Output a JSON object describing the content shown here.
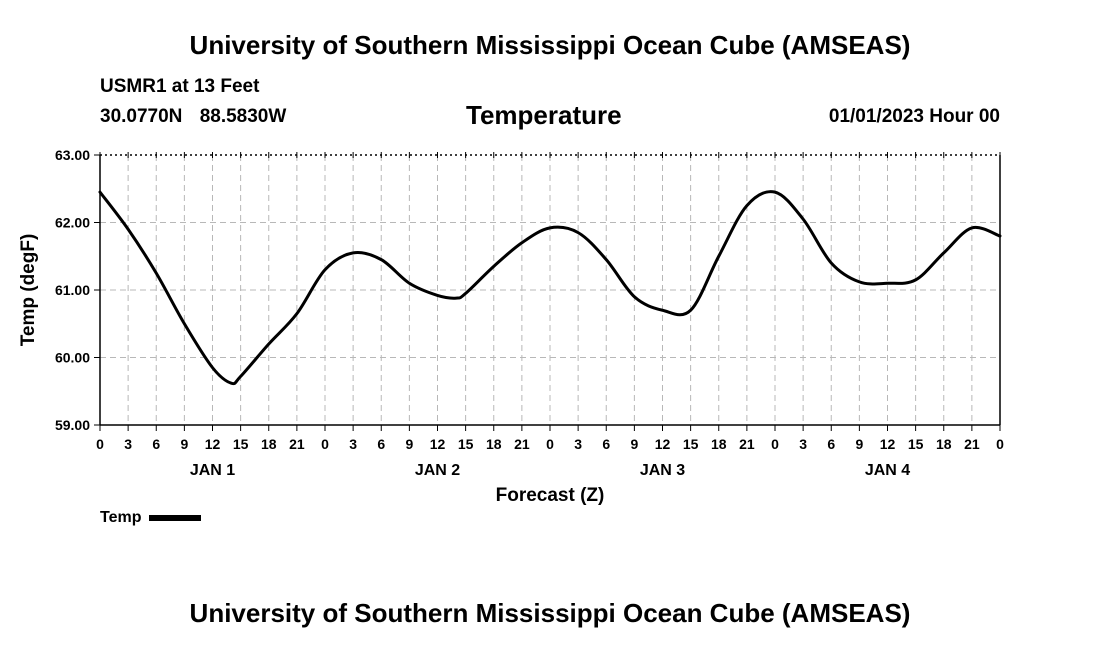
{
  "header": {
    "title": "University of Southern Mississippi Ocean Cube (AMSEAS)",
    "station": "USMR1 at 13 Feet",
    "latitude": "30.0770N",
    "longitude": "88.5830W",
    "parameter": "Temperature",
    "datetime": "01/01/2023 Hour 00"
  },
  "footer": {
    "title": "University of Southern Mississippi Ocean Cube (AMSEAS)"
  },
  "legend": {
    "label": "Temp",
    "color": "#000000"
  },
  "chart_data": {
    "type": "line",
    "title": "Temperature",
    "xlabel": "Forecast (Z)",
    "ylabel": "Temp (degF)",
    "xlim": [
      0,
      96
    ],
    "ylim": [
      59.0,
      63.0
    ],
    "yticks": [
      "59.00",
      "60.00",
      "61.00",
      "62.00",
      "63.00"
    ],
    "yticks_values": [
      59,
      60,
      61,
      62,
      63
    ],
    "xticks": [
      "0",
      "3",
      "6",
      "9",
      "12",
      "15",
      "18",
      "21",
      "0",
      "3",
      "6",
      "9",
      "12",
      "15",
      "18",
      "21",
      "0",
      "3",
      "6",
      "9",
      "12",
      "15",
      "18",
      "21",
      "0",
      "3",
      "6",
      "9",
      "12",
      "15",
      "18",
      "21",
      "0"
    ],
    "day_labels": [
      {
        "label": "JAN 1",
        "hour": 12
      },
      {
        "label": "JAN 2",
        "hour": 36
      },
      {
        "label": "JAN 3",
        "hour": 60
      },
      {
        "label": "JAN 4",
        "hour": 84
      }
    ],
    "grid": true,
    "series": [
      {
        "name": "Temp",
        "x": [
          0,
          3,
          6,
          9,
          12,
          14,
          15,
          18,
          21,
          24,
          27,
          30,
          33,
          36,
          38,
          39,
          42,
          45,
          48,
          51,
          54,
          57,
          60,
          63,
          66,
          69,
          72,
          75,
          78,
          81,
          84,
          87,
          90,
          93,
          96
        ],
        "values": [
          62.45,
          61.9,
          61.25,
          60.5,
          59.85,
          59.62,
          59.72,
          60.2,
          60.65,
          61.3,
          61.55,
          61.45,
          61.1,
          60.92,
          60.88,
          60.95,
          61.35,
          61.7,
          61.92,
          61.85,
          61.45,
          60.9,
          60.7,
          60.7,
          61.5,
          62.25,
          62.45,
          62.05,
          61.4,
          61.12,
          61.1,
          61.15,
          61.55,
          61.92,
          61.8
        ]
      }
    ]
  }
}
